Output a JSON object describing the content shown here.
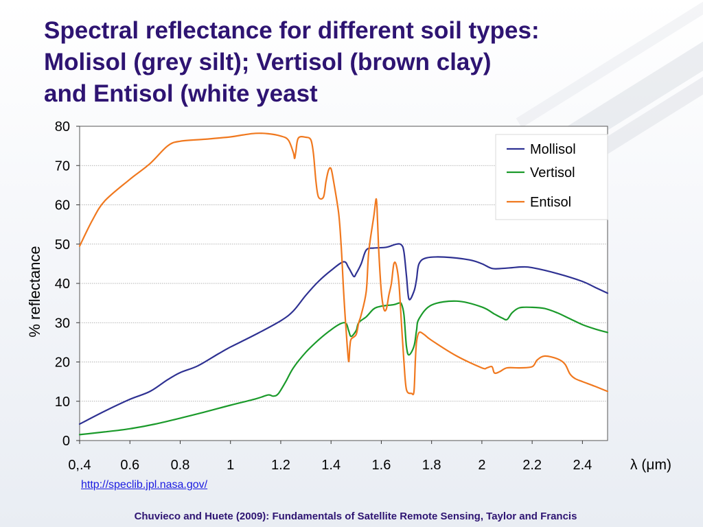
{
  "slide": {
    "title_lines": [
      "Spectral reflectance for different soil types:",
      "Molisol (grey silt); Vertisol (brown clay)",
      "and Entisol (white yeast"
    ],
    "url": "http://speclib.jpl.nasa.gov/",
    "citation": "Chuvieco and Huete (2009): Fundamentals of Satellite Remote Sensing, Taylor and Francis"
  },
  "chart_data": {
    "type": "line",
    "title": "",
    "xlabel": "λ (μm)",
    "ylabel": "% reflectance",
    "xlim": [
      0.4,
      2.5
    ],
    "ylim": [
      0,
      80
    ],
    "grid": "horizontal",
    "legend_position": "top-right",
    "x_ticks": [
      {
        "value": 0.4,
        "label": "0,.4"
      },
      {
        "value": 0.6,
        "label": "0.6"
      },
      {
        "value": 0.8,
        "label": "0.8"
      },
      {
        "value": 1.0,
        "label": "1"
      },
      {
        "value": 1.2,
        "label": "1.2"
      },
      {
        "value": 1.4,
        "label": "1.4"
      },
      {
        "value": 1.6,
        "label": "1.6"
      },
      {
        "value": 1.8,
        "label": "1.8"
      },
      {
        "value": 2.0,
        "label": "2"
      },
      {
        "value": 2.2,
        "label": "2.2"
      },
      {
        "value": 2.4,
        "label": "2.4"
      }
    ],
    "y_ticks": [
      {
        "value": 0,
        "label": "0"
      },
      {
        "value": 10,
        "label": "10"
      },
      {
        "value": 20,
        "label": "20"
      },
      {
        "value": 30,
        "label": "30"
      },
      {
        "value": 40,
        "label": "40"
      },
      {
        "value": 50,
        "label": "50"
      },
      {
        "value": 60,
        "label": "60"
      },
      {
        "value": 70,
        "label": "70"
      },
      {
        "value": 80,
        "label": "80"
      }
    ],
    "series": [
      {
        "name": "Mollisol",
        "color": "#2e3192",
        "points": [
          [
            0.4,
            4.2
          ],
          [
            0.5,
            7.5
          ],
          [
            0.6,
            10.5
          ],
          [
            0.68,
            12.5
          ],
          [
            0.75,
            15.5
          ],
          [
            0.8,
            17.3
          ],
          [
            0.87,
            19
          ],
          [
            0.95,
            22
          ],
          [
            1.0,
            23.8
          ],
          [
            1.1,
            27
          ],
          [
            1.2,
            30.5
          ],
          [
            1.25,
            33
          ],
          [
            1.3,
            37
          ],
          [
            1.35,
            40.5
          ],
          [
            1.4,
            43.3
          ],
          [
            1.45,
            45.5
          ],
          [
            1.47,
            44
          ],
          [
            1.49,
            41.8
          ],
          [
            1.5,
            42.5
          ],
          [
            1.52,
            45
          ],
          [
            1.54,
            48.5
          ],
          [
            1.57,
            49
          ],
          [
            1.62,
            49.2
          ],
          [
            1.66,
            50
          ],
          [
            1.68,
            49.8
          ],
          [
            1.69,
            48
          ],
          [
            1.7,
            42
          ],
          [
            1.71,
            36
          ],
          [
            1.73,
            38
          ],
          [
            1.74,
            41
          ],
          [
            1.75,
            45
          ],
          [
            1.78,
            46.5
          ],
          [
            1.85,
            46.7
          ],
          [
            1.95,
            46
          ],
          [
            2.0,
            45
          ],
          [
            2.04,
            43.8
          ],
          [
            2.08,
            43.8
          ],
          [
            2.12,
            44
          ],
          [
            2.16,
            44.2
          ],
          [
            2.2,
            44
          ],
          [
            2.3,
            42.5
          ],
          [
            2.4,
            40.5
          ],
          [
            2.45,
            39
          ],
          [
            2.5,
            37.5
          ]
        ]
      },
      {
        "name": "Vertisol",
        "color": "#1a9a2a",
        "points": [
          [
            0.4,
            1.5
          ],
          [
            0.5,
            2.2
          ],
          [
            0.6,
            3
          ],
          [
            0.7,
            4.2
          ],
          [
            0.8,
            5.7
          ],
          [
            0.9,
            7.3
          ],
          [
            1.0,
            9
          ],
          [
            1.1,
            10.6
          ],
          [
            1.15,
            11.6
          ],
          [
            1.17,
            11.3
          ],
          [
            1.19,
            11.9
          ],
          [
            1.22,
            15
          ],
          [
            1.25,
            18.5
          ],
          [
            1.3,
            22.5
          ],
          [
            1.35,
            25.6
          ],
          [
            1.4,
            28.2
          ],
          [
            1.44,
            29.8
          ],
          [
            1.46,
            29.8
          ],
          [
            1.47,
            28
          ],
          [
            1.48,
            26.5
          ],
          [
            1.5,
            28
          ],
          [
            1.51,
            30
          ],
          [
            1.54,
            31.5
          ],
          [
            1.57,
            33.5
          ],
          [
            1.6,
            34.2
          ],
          [
            1.65,
            34.6
          ],
          [
            1.67,
            35
          ],
          [
            1.68,
            34.8
          ],
          [
            1.69,
            32
          ],
          [
            1.7,
            24
          ],
          [
            1.71,
            21.8
          ],
          [
            1.73,
            24
          ],
          [
            1.74,
            28
          ],
          [
            1.75,
            31
          ],
          [
            1.8,
            34.5
          ],
          [
            1.9,
            35.5
          ],
          [
            2.0,
            34
          ],
          [
            2.05,
            32.2
          ],
          [
            2.08,
            31.2
          ],
          [
            2.1,
            30.8
          ],
          [
            2.12,
            32.5
          ],
          [
            2.15,
            33.8
          ],
          [
            2.2,
            33.9
          ],
          [
            2.25,
            33.6
          ],
          [
            2.3,
            32.5
          ],
          [
            2.35,
            31
          ],
          [
            2.4,
            29.5
          ],
          [
            2.45,
            28.4
          ],
          [
            2.5,
            27.5
          ]
        ]
      },
      {
        "name": "Entisol",
        "color": "#f0781e",
        "points": [
          [
            0.4,
            49.5
          ],
          [
            0.45,
            56
          ],
          [
            0.5,
            61
          ],
          [
            0.6,
            66.5
          ],
          [
            0.68,
            70.5
          ],
          [
            0.75,
            75
          ],
          [
            0.8,
            76.2
          ],
          [
            0.9,
            76.7
          ],
          [
            1.0,
            77.3
          ],
          [
            1.05,
            77.8
          ],
          [
            1.1,
            78.2
          ],
          [
            1.15,
            78.1
          ],
          [
            1.2,
            77.5
          ],
          [
            1.23,
            76.5
          ],
          [
            1.25,
            73.3
          ],
          [
            1.255,
            71.8
          ],
          [
            1.26,
            73.5
          ],
          [
            1.27,
            77
          ],
          [
            1.3,
            77.2
          ],
          [
            1.32,
            76.5
          ],
          [
            1.33,
            73
          ],
          [
            1.34,
            66
          ],
          [
            1.35,
            62
          ],
          [
            1.37,
            62
          ],
          [
            1.38,
            66
          ],
          [
            1.39,
            68.8
          ],
          [
            1.4,
            69.2
          ],
          [
            1.41,
            66
          ],
          [
            1.43,
            58
          ],
          [
            1.44,
            50
          ],
          [
            1.45,
            38
          ],
          [
            1.46,
            28
          ],
          [
            1.47,
            20.2
          ],
          [
            1.475,
            24
          ],
          [
            1.48,
            25.8
          ],
          [
            1.5,
            27
          ],
          [
            1.51,
            30
          ],
          [
            1.52,
            32
          ],
          [
            1.54,
            38
          ],
          [
            1.55,
            48
          ],
          [
            1.57,
            57
          ],
          [
            1.58,
            61.5
          ],
          [
            1.585,
            56
          ],
          [
            1.59,
            48
          ],
          [
            1.6,
            38
          ],
          [
            1.61,
            33.5
          ],
          [
            1.62,
            33.5
          ],
          [
            1.63,
            37
          ],
          [
            1.64,
            40
          ],
          [
            1.65,
            45
          ],
          [
            1.66,
            44.5
          ],
          [
            1.67,
            40
          ],
          [
            1.68,
            30
          ],
          [
            1.69,
            20
          ],
          [
            1.7,
            13
          ],
          [
            1.72,
            12
          ],
          [
            1.73,
            12.5
          ],
          [
            1.735,
            20
          ],
          [
            1.74,
            25
          ],
          [
            1.75,
            27.5
          ],
          [
            1.77,
            27
          ],
          [
            1.8,
            25.5
          ],
          [
            1.9,
            21.5
          ],
          [
            2.0,
            18.5
          ],
          [
            2.02,
            18.5
          ],
          [
            2.04,
            18.8
          ],
          [
            2.05,
            17.2
          ],
          [
            2.07,
            17.5
          ],
          [
            2.1,
            18.5
          ],
          [
            2.15,
            18.5
          ],
          [
            2.2,
            18.8
          ],
          [
            2.22,
            20.5
          ],
          [
            2.25,
            21.5
          ],
          [
            2.3,
            20.8
          ],
          [
            2.33,
            19.5
          ],
          [
            2.35,
            17
          ],
          [
            2.37,
            15.8
          ],
          [
            2.4,
            15
          ],
          [
            2.45,
            13.8
          ],
          [
            2.5,
            12.5
          ]
        ]
      }
    ]
  }
}
